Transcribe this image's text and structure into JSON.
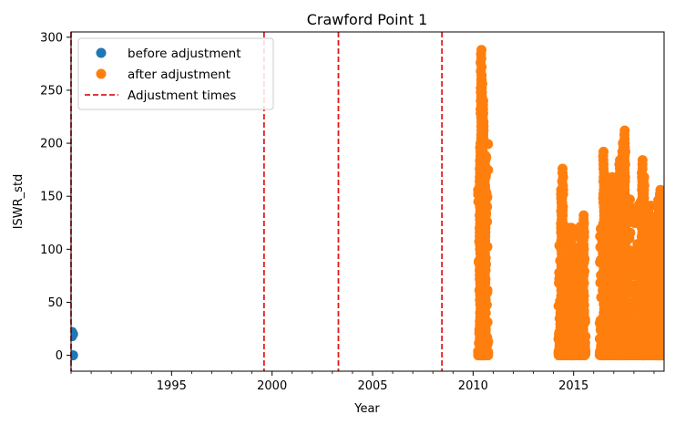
{
  "chart_data": {
    "type": "scatter",
    "title": "Crawford Point 1",
    "xlabel": "Year",
    "ylabel": "ISWR_std",
    "xlim": [
      1990,
      2019.5
    ],
    "ylim": [
      -15,
      305
    ],
    "xticks": [
      1995,
      2000,
      2005,
      2010,
      2015
    ],
    "yticks": [
      0,
      50,
      100,
      150,
      200,
      250,
      300
    ],
    "legend_position": "top-left",
    "legend": [
      {
        "label": "before adjustment",
        "marker": "dot",
        "color": "#1f77b4"
      },
      {
        "label": "after adjustment",
        "marker": "dot",
        "color": "#ff7f0e"
      },
      {
        "label": "Adjustment times",
        "marker": "dashed-line",
        "color": "#e31a1c"
      }
    ],
    "adjustment_times": [
      1990.0,
      1999.6,
      2003.3,
      2008.45
    ],
    "series": [
      {
        "name": "before adjustment",
        "color": "#1f77b4",
        "points": [
          [
            1990.05,
            22
          ],
          [
            1990.1,
            20
          ],
          [
            1990.05,
            18
          ],
          [
            1990.05,
            0
          ],
          [
            1990.1,
            0
          ]
        ]
      },
      {
        "name": "after adjustment",
        "color": "#ff7f0e",
        "clusters": [
          {
            "x_start": 2010.25,
            "x_end": 2010.75,
            "max_y": 290,
            "peaks": [
              [
                2010.4,
                290
              ],
              [
                2010.45,
                265
              ],
              [
                2010.5,
                240
              ],
              [
                2010.35,
                200
              ],
              [
                2010.6,
                190
              ]
            ]
          },
          {
            "x_start": 2014.25,
            "x_end": 2015.6,
            "max_y": 180,
            "peaks": [
              [
                2014.45,
                178
              ],
              [
                2014.4,
                158
              ],
              [
                2014.9,
                120
              ],
              [
                2015.2,
                100
              ],
              [
                2015.5,
                133
              ]
            ]
          },
          {
            "x_start": 2016.3,
            "x_end": 2019.5,
            "max_y": 215,
            "peaks": [
              [
                2016.5,
                192
              ],
              [
                2016.9,
                168
              ],
              [
                2017.3,
                185
              ],
              [
                2017.45,
                200
              ],
              [
                2017.55,
                215
              ],
              [
                2018.4,
                184
              ],
              [
                2018.5,
                170
              ],
              [
                2018.9,
                130
              ],
              [
                2019.3,
                158
              ],
              [
                2019.45,
                135
              ]
            ]
          }
        ]
      }
    ]
  }
}
